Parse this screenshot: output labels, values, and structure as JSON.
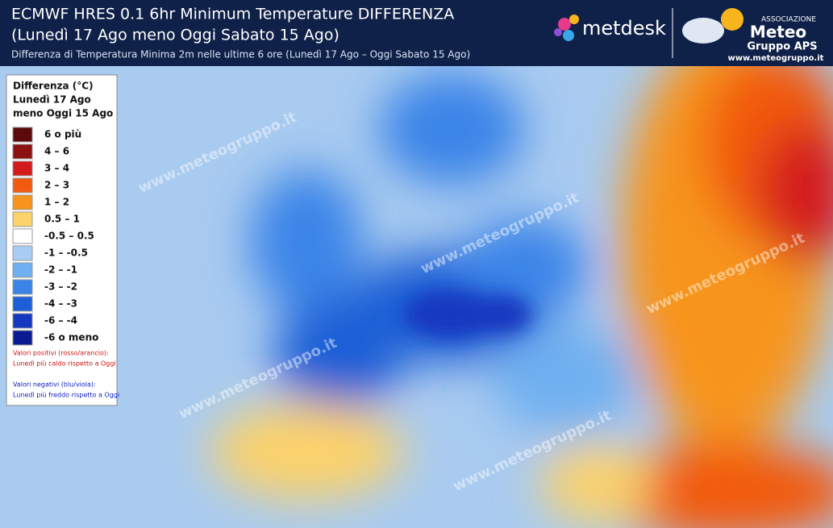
{
  "header": {
    "title_line1": "ECMWF HRES 0.1 6hr Minimum Temperature DIFFERENZA",
    "title_line2": "(Lunedì 17 Ago meno Oggi Sabato 15 Ago)",
    "subtitle": "Differenza di Temperatura Minima 2m nelle ultime 6 ore  (Lunedì 17 Ago  –  Oggi Sabato 15 Ago)"
  },
  "logos": {
    "metdesk": "metdesk",
    "association": "ASSOCIAZIONE",
    "meteo": "Meteo",
    "gruppo": "Gruppo APS",
    "url": "www.meteogruppo.it"
  },
  "legend": {
    "title": [
      "Differenza (°C)",
      "Lunedì 17 Ago",
      "meno Oggi 15 Ago"
    ],
    "entries": [
      {
        "label": "6 o più",
        "color": "#5c0a0a"
      },
      {
        "label": "4 – 6",
        "color": "#8b1010"
      },
      {
        "label": "3 – 4",
        "color": "#d41a1a"
      },
      {
        "label": "2 – 3",
        "color": "#f25a10"
      },
      {
        "label": "1 – 2",
        "color": "#f7941d"
      },
      {
        "label": "0.5 – 1",
        "color": "#fcd26a"
      },
      {
        "label": "-0.5 – 0.5",
        "color": "#ffffff"
      },
      {
        "label": "-1 – -0.5",
        "color": "#a9cdf2"
      },
      {
        "label": "-2 – -1",
        "color": "#6fb0f0"
      },
      {
        "label": "-3 – -2",
        "color": "#3a84e8"
      },
      {
        "label": "-4 – -3",
        "color": "#1f5fd6"
      },
      {
        "label": "-6 – -4",
        "color": "#1438c0"
      },
      {
        "label": "-6 o meno",
        "color": "#0a1a90"
      }
    ],
    "note_positive": [
      "Valori positivi (rosso/arancio):",
      "Lunedì più caldo rispetto a Oggi"
    ],
    "note_negative": [
      "Valori negativi (blu/viola):",
      "Lunedì più freddo rispetto a Oggi"
    ]
  },
  "watermark": "www.meteogruppo.it"
}
